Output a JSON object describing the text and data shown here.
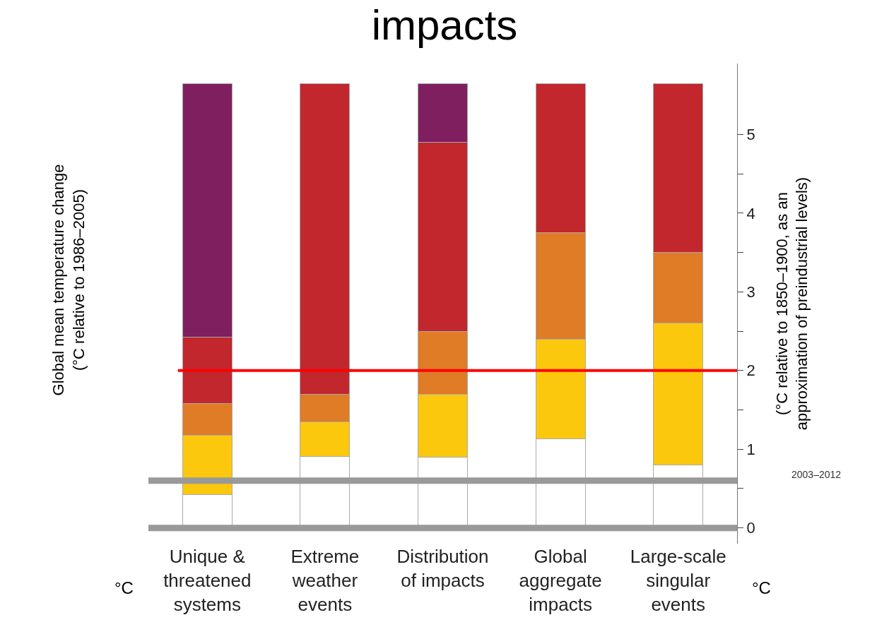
{
  "chart_data": {
    "type": "bar",
    "stacked": true,
    "title": "impacts",
    "ylabel": "Global mean temperature change\n(°C relative to 1986–2005)",
    "y2label": "(°C relative to 1850–1900, as an\napproximation of preindustrial levels)",
    "categories": [
      "Unique &\nthreatened\nsystems",
      "Extreme\nweather\nevents",
      "Distribution\nof impacts",
      "Global\naggregate\nimpacts",
      "Large-scale\nsingular\nevents"
    ],
    "series": [
      {
        "color": "#ffffff",
        "axis": "y2",
        "values": [
          0.42,
          0.91,
          0.9,
          1.13,
          0.8
        ]
      },
      {
        "color": "#fcc80e",
        "axis": "y2",
        "values": [
          0.76,
          0.44,
          0.8,
          1.27,
          1.8
        ]
      },
      {
        "color": "#e07b26",
        "axis": "y2",
        "values": [
          0.4,
          0.35,
          0.8,
          1.35,
          0.9
        ]
      },
      {
        "color": "#c1272d",
        "axis": "y2",
        "values": [
          0.84,
          3.94,
          2.4,
          1.89,
          2.14
        ]
      },
      {
        "color": "#7f1f5f",
        "axis": "y2",
        "values": [
          3.22,
          0,
          0.74,
          0,
          0
        ]
      }
    ],
    "y2lim": [
      -0.2,
      5.9
    ],
    "y2ticks": [
      0,
      {
        "value": 0.5,
        "label": null
      },
      1,
      {
        "value": 1.5,
        "label": null
      },
      2,
      {
        "value": 2.5,
        "label": null
      },
      3,
      {
        "value": 3.5,
        "label": null
      },
      4,
      {
        "value": 4.5,
        "label": null
      },
      5
    ],
    "ref_lines": [
      {
        "axis": "y2",
        "value": 0,
        "color": "#999999"
      },
      {
        "axis": "y2",
        "value": 0.6,
        "color": "#999999"
      },
      {
        "axis": "y2",
        "value": 2,
        "color": "#ff0000"
      }
    ],
    "annotations": [
      "2003–2012",
      "°C",
      "°C"
    ]
  }
}
